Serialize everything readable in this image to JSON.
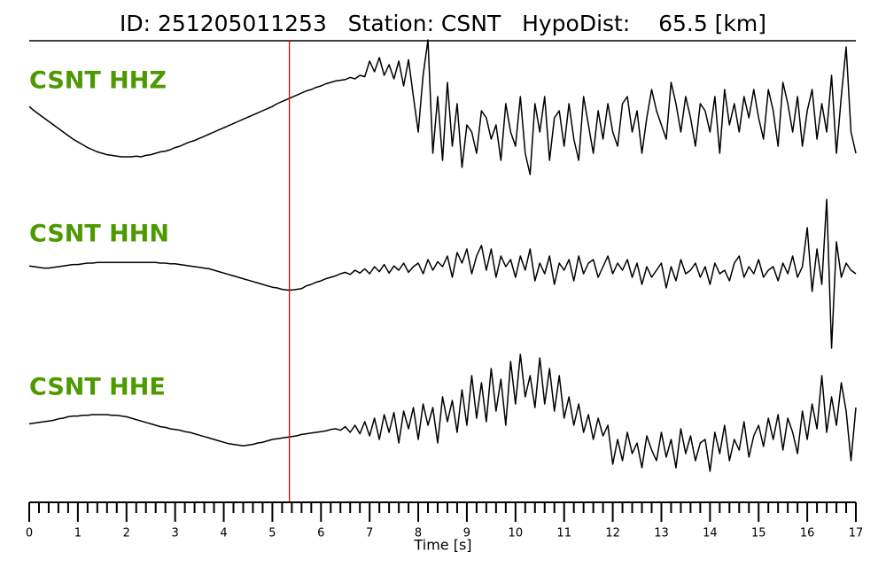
{
  "chart_data": {
    "type": "line",
    "title": "ID: 251205011253   Station: CSNT   HypoDist:    65.5 [km]",
    "xlabel": "Time [s]",
    "label_color": "#4c9a00",
    "pick_time": 5.35,
    "pick_color": "#e00000",
    "xlim": [
      0,
      17
    ],
    "xticks": [
      0,
      1,
      2,
      3,
      4,
      5,
      6,
      7,
      8,
      9,
      10,
      11,
      12,
      13,
      14,
      15,
      16,
      17
    ],
    "xminorticks": [
      0.2,
      0.4,
      0.6,
      0.8,
      1.2,
      1.4,
      1.6,
      1.8,
      2.2,
      2.4,
      2.6,
      2.8,
      3.2,
      3.4,
      3.6,
      3.8,
      4.2,
      4.4,
      4.6,
      4.8,
      5.2,
      5.4,
      5.6,
      5.8,
      6.2,
      6.4,
      6.6,
      6.8,
      7.2,
      7.4,
      7.6,
      7.8,
      8.2,
      8.4,
      8.6,
      8.8,
      9.2,
      9.4,
      9.6,
      9.8,
      10.2,
      10.4,
      10.6,
      10.8,
      11.2,
      11.4,
      11.6,
      11.8,
      12.2,
      12.4,
      12.6,
      12.8,
      13.2,
      13.4,
      13.6,
      13.8,
      14.2,
      14.4,
      14.6,
      14.8,
      15.2,
      15.4,
      15.6,
      15.8,
      16.2,
      16.4,
      16.6,
      16.8
    ],
    "ylim": [
      -1,
      1
    ],
    "x": [
      0,
      0.1,
      0.2,
      0.3,
      0.4,
      0.5,
      0.6,
      0.7,
      0.8,
      0.9,
      1,
      1.1,
      1.2,
      1.3,
      1.4,
      1.5,
      1.6,
      1.7,
      1.8,
      1.9,
      2,
      2.1,
      2.2,
      2.3,
      2.4,
      2.5,
      2.6,
      2.7,
      2.8,
      2.9,
      3,
      3.1,
      3.2,
      3.3,
      3.4,
      3.5,
      3.6,
      3.7,
      3.8,
      3.9,
      4,
      4.1,
      4.2,
      4.3,
      4.4,
      4.5,
      4.6,
      4.7,
      4.8,
      4.9,
      5,
      5.1,
      5.2,
      5.3,
      5.4,
      5.5,
      5.6,
      5.7,
      5.8,
      5.9,
      6,
      6.1,
      6.2,
      6.3,
      6.4,
      6.5,
      6.6,
      6.7,
      6.8,
      6.9,
      7,
      7.1,
      7.2,
      7.3,
      7.4,
      7.5,
      7.6,
      7.7,
      7.8,
      7.9,
      8,
      8.1,
      8.2,
      8.3,
      8.4,
      8.5,
      8.6,
      8.7,
      8.8,
      8.9,
      9,
      9.1,
      9.2,
      9.3,
      9.4,
      9.5,
      9.6,
      9.7,
      9.8,
      9.9,
      10,
      10.1,
      10.2,
      10.3,
      10.4,
      10.5,
      10.6,
      10.7,
      10.8,
      10.9,
      11,
      11.1,
      11.2,
      11.3,
      11.4,
      11.5,
      11.6,
      11.7,
      11.8,
      11.9,
      12,
      12.1,
      12.2,
      12.3,
      12.4,
      12.5,
      12.6,
      12.7,
      12.8,
      12.9,
      13,
      13.1,
      13.2,
      13.3,
      13.4,
      13.5,
      13.6,
      13.7,
      13.8,
      13.9,
      14,
      14.1,
      14.2,
      14.3,
      14.4,
      14.5,
      14.6,
      14.7,
      14.8,
      14.9,
      15,
      15.1,
      15.2,
      15.3,
      15.4,
      15.5,
      15.6,
      15.7,
      15.8,
      15.9,
      16,
      16.1,
      16.2,
      16.3,
      16.4,
      16.5,
      16.6,
      16.7,
      16.8,
      16.9,
      17
    ],
    "series": [
      {
        "name": "CSNT HHZ",
        "color": "#000000",
        "values": [
          0.06,
          0.0,
          -0.05,
          -0.1,
          -0.15,
          -0.2,
          -0.25,
          -0.3,
          -0.35,
          -0.4,
          -0.44,
          -0.48,
          -0.52,
          -0.55,
          -0.58,
          -0.6,
          -0.62,
          -0.63,
          -0.64,
          -0.65,
          -0.65,
          -0.65,
          -0.64,
          -0.65,
          -0.63,
          -0.62,
          -0.6,
          -0.58,
          -0.57,
          -0.55,
          -0.52,
          -0.5,
          -0.47,
          -0.44,
          -0.42,
          -0.39,
          -0.36,
          -0.33,
          -0.3,
          -0.27,
          -0.24,
          -0.21,
          -0.18,
          -0.15,
          -0.12,
          -0.09,
          -0.06,
          -0.03,
          0.0,
          0.03,
          0.06,
          0.1,
          0.13,
          0.16,
          0.19,
          0.22,
          0.25,
          0.28,
          0.3,
          0.33,
          0.35,
          0.38,
          0.4,
          0.42,
          0.43,
          0.44,
          0.47,
          0.45,
          0.5,
          0.48,
          0.7,
          0.55,
          0.75,
          0.5,
          0.65,
          0.45,
          0.7,
          0.35,
          0.72,
          0.2,
          -0.3,
          0.5,
          1.0,
          -0.6,
          0.2,
          -0.7,
          0.4,
          -0.5,
          0.1,
          -0.8,
          -0.2,
          -0.3,
          -0.6,
          0.0,
          -0.1,
          -0.4,
          -0.2,
          -0.7,
          0.1,
          -0.3,
          -0.5,
          0.2,
          -0.6,
          -0.9,
          0.1,
          -0.3,
          0.2,
          -0.7,
          -0.1,
          0.0,
          -0.5,
          0.1,
          -0.4,
          -0.7,
          0.2,
          -0.2,
          -0.6,
          0.0,
          -0.4,
          0.1,
          -0.3,
          -0.5,
          0.1,
          0.2,
          -0.3,
          0.0,
          -0.6,
          -0.1,
          0.3,
          0.0,
          -0.2,
          -0.4,
          0.4,
          0.1,
          -0.3,
          0.2,
          -0.1,
          -0.5,
          0.1,
          0.0,
          -0.3,
          0.2,
          -0.6,
          0.3,
          -0.2,
          0.1,
          -0.3,
          0.2,
          -0.1,
          0.3,
          -0.1,
          -0.4,
          0.3,
          0.0,
          -0.5,
          0.4,
          0.1,
          -0.3,
          0.2,
          -0.5,
          0.0,
          0.3,
          -0.4,
          0.1,
          -0.3,
          0.5,
          -0.6,
          0.2,
          0.9,
          -0.3,
          -0.6
        ]
      },
      {
        "name": "CSNT HHN",
        "color": "#000000",
        "values": [
          0.06,
          0.05,
          0.04,
          0.03,
          0.03,
          0.04,
          0.05,
          0.06,
          0.07,
          0.08,
          0.08,
          0.09,
          0.1,
          0.1,
          0.11,
          0.11,
          0.11,
          0.11,
          0.11,
          0.11,
          0.11,
          0.11,
          0.11,
          0.11,
          0.11,
          0.11,
          0.11,
          0.1,
          0.1,
          0.09,
          0.09,
          0.08,
          0.07,
          0.06,
          0.05,
          0.04,
          0.03,
          0.02,
          0.0,
          -0.02,
          -0.04,
          -0.06,
          -0.08,
          -0.1,
          -0.12,
          -0.14,
          -0.16,
          -0.18,
          -0.2,
          -0.22,
          -0.24,
          -0.25,
          -0.27,
          -0.28,
          -0.28,
          -0.27,
          -0.26,
          -0.22,
          -0.2,
          -0.17,
          -0.15,
          -0.12,
          -0.1,
          -0.08,
          -0.05,
          -0.03,
          -0.06,
          0.0,
          -0.04,
          0.02,
          -0.05,
          0.05,
          -0.02,
          0.08,
          -0.04,
          0.06,
          0.0,
          0.1,
          -0.03,
          0.05,
          0.1,
          -0.05,
          0.15,
          0.0,
          0.12,
          0.05,
          0.2,
          -0.1,
          0.25,
          0.1,
          0.3,
          -0.05,
          0.2,
          0.35,
          0.0,
          0.3,
          -0.1,
          0.2,
          0.05,
          0.15,
          -0.1,
          0.2,
          0.0,
          0.3,
          -0.15,
          0.1,
          -0.05,
          0.2,
          -0.2,
          0.1,
          0.0,
          0.15,
          -0.15,
          0.2,
          -0.05,
          0.1,
          0.15,
          -0.1,
          0.05,
          0.2,
          -0.05,
          0.1,
          0.0,
          0.15,
          -0.1,
          0.1,
          -0.2,
          0.05,
          -0.1,
          0.0,
          0.1,
          -0.25,
          0.05,
          -0.15,
          0.15,
          -0.05,
          0.0,
          0.1,
          -0.1,
          0.05,
          -0.2,
          0.1,
          -0.05,
          0.0,
          -0.15,
          0.1,
          0.2,
          -0.1,
          0.05,
          -0.05,
          0.15,
          -0.1,
          0.0,
          0.05,
          -0.15,
          0.1,
          -0.05,
          0.2,
          -0.1,
          0.05,
          0.6,
          -0.3,
          0.3,
          -0.2,
          1.0,
          -1.1,
          0.4,
          -0.1,
          0.1,
          0.0,
          -0.05
        ]
      },
      {
        "name": "CSNT HHE",
        "color": "#000000",
        "values": [
          -0.08,
          -0.07,
          -0.06,
          -0.05,
          -0.04,
          -0.03,
          -0.01,
          0.0,
          0.02,
          0.03,
          0.03,
          0.04,
          0.04,
          0.05,
          0.05,
          0.05,
          0.05,
          0.04,
          0.04,
          0.03,
          0.02,
          0.0,
          -0.02,
          -0.04,
          -0.06,
          -0.08,
          -0.1,
          -0.12,
          -0.13,
          -0.15,
          -0.16,
          -0.17,
          -0.19,
          -0.2,
          -0.22,
          -0.24,
          -0.26,
          -0.28,
          -0.3,
          -0.32,
          -0.34,
          -0.36,
          -0.37,
          -0.38,
          -0.39,
          -0.38,
          -0.37,
          -0.35,
          -0.34,
          -0.32,
          -0.3,
          -0.29,
          -0.28,
          -0.27,
          -0.26,
          -0.25,
          -0.23,
          -0.22,
          -0.21,
          -0.2,
          -0.19,
          -0.18,
          -0.16,
          -0.15,
          -0.17,
          -0.12,
          -0.2,
          -0.1,
          -0.22,
          -0.05,
          -0.25,
          0.0,
          -0.3,
          0.05,
          -0.2,
          0.08,
          -0.35,
          0.1,
          -0.15,
          0.15,
          -0.3,
          0.2,
          -0.1,
          0.15,
          -0.35,
          0.3,
          -0.05,
          0.25,
          -0.2,
          0.4,
          -0.1,
          0.6,
          0.0,
          0.5,
          -0.05,
          0.7,
          0.1,
          0.55,
          -0.1,
          0.8,
          0.2,
          0.9,
          0.3,
          0.6,
          0.15,
          0.85,
          0.2,
          0.7,
          0.1,
          0.6,
          0.0,
          0.3,
          -0.1,
          0.2,
          -0.2,
          0.05,
          -0.3,
          0.0,
          -0.25,
          -0.1,
          -0.65,
          -0.3,
          -0.6,
          -0.2,
          -0.5,
          -0.35,
          -0.7,
          -0.25,
          -0.45,
          -0.6,
          -0.2,
          -0.55,
          -0.3,
          -0.7,
          -0.15,
          -0.5,
          -0.25,
          -0.6,
          -0.35,
          -0.3,
          -0.75,
          -0.2,
          -0.5,
          -0.1,
          -0.6,
          -0.3,
          -0.45,
          -0.05,
          -0.55,
          -0.25,
          -0.1,
          -0.4,
          0.0,
          -0.3,
          0.05,
          -0.45,
          0.0,
          -0.2,
          -0.5,
          0.1,
          -0.3,
          0.2,
          -0.15,
          0.6,
          -0.2,
          0.3,
          -0.1,
          0.5,
          0.1,
          -0.6,
          0.15
        ]
      }
    ]
  }
}
